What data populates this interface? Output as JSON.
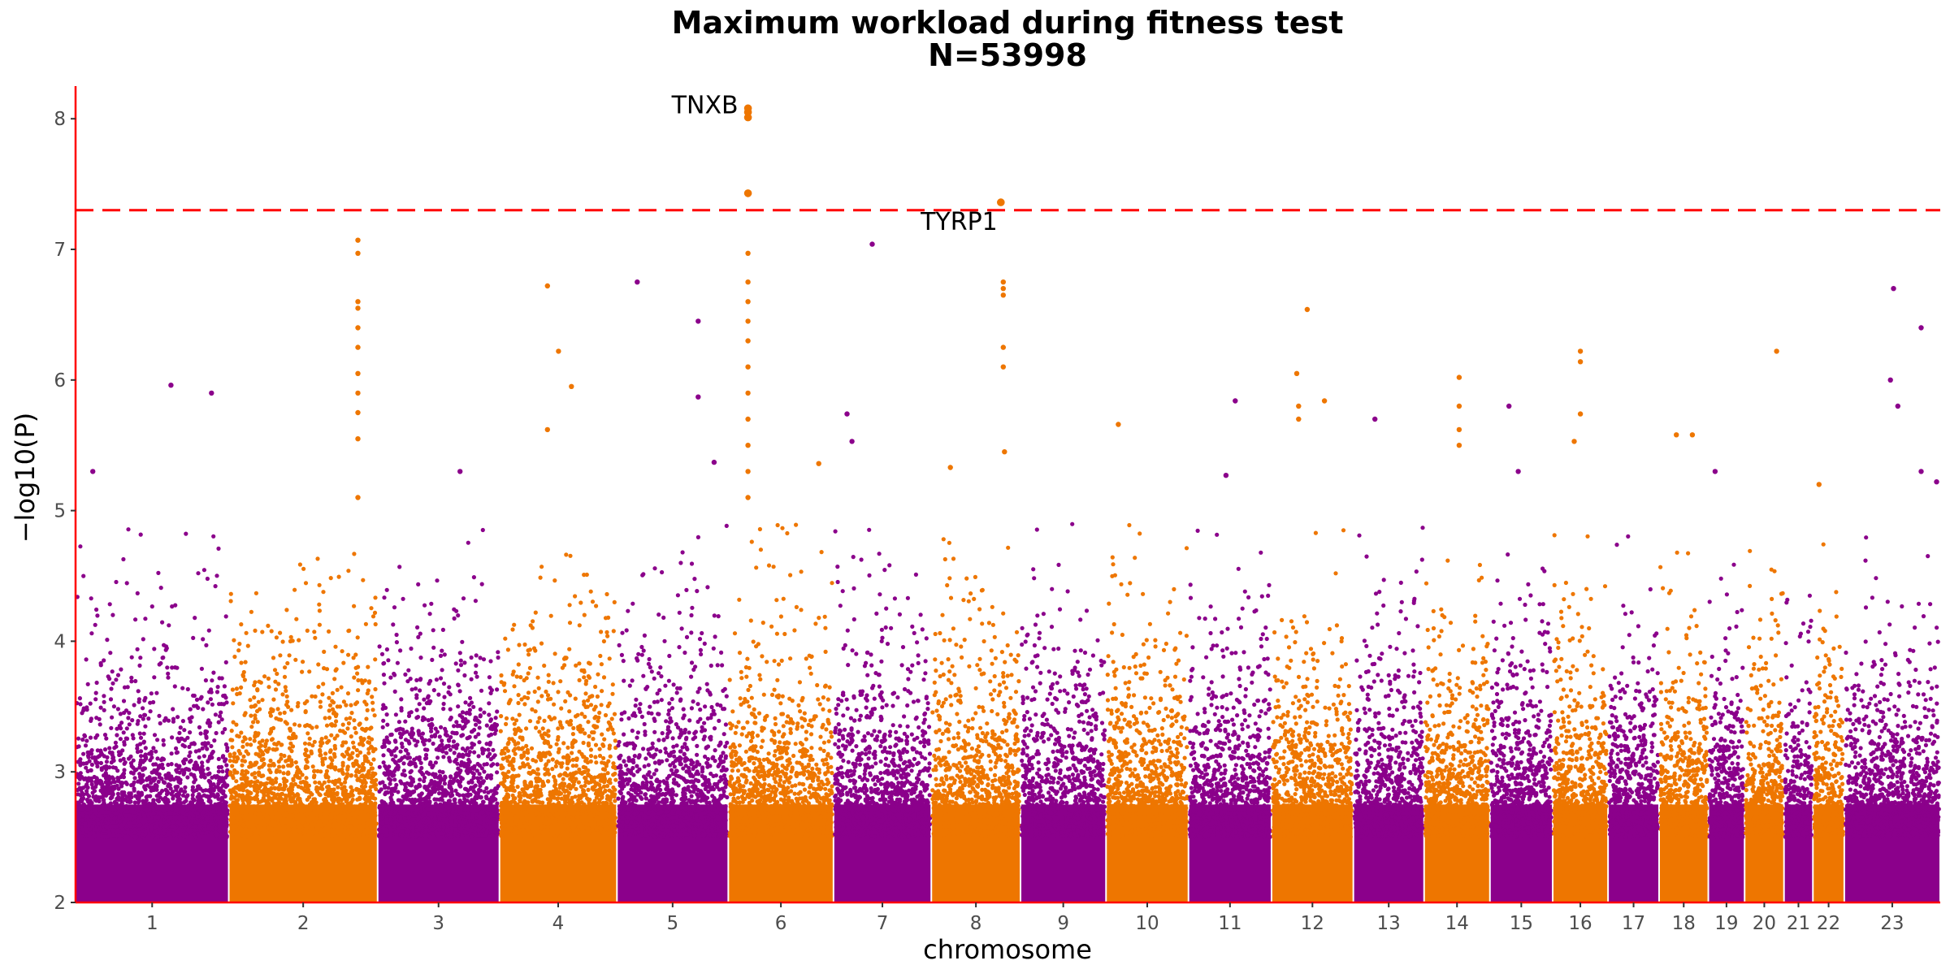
{
  "chart_data": {
    "type": "scatter",
    "subtype": "manhattan",
    "title": "Maximum workload during fitness test",
    "subtitle": "N=53998",
    "xlabel": "chromosome",
    "ylabel": "−log10(P)",
    "ylim": [
      2,
      8.25
    ],
    "yticks": [
      2,
      3,
      4,
      5,
      6,
      7,
      8
    ],
    "grid": false,
    "legend": "none",
    "colors": {
      "odd": "#8b008b",
      "even": "#ee7600",
      "axis": "#ff0000",
      "threshold": "#ff0000"
    },
    "threshold": {
      "value": 7.3,
      "style": "dashed"
    },
    "chromosomes": [
      {
        "chr": "1",
        "start": 0,
        "end": 249
      },
      {
        "chr": "2",
        "start": 249,
        "end": 491
      },
      {
        "chr": "3",
        "start": 491,
        "end": 689
      },
      {
        "chr": "4",
        "start": 689,
        "end": 880
      },
      {
        "chr": "5",
        "start": 880,
        "end": 1061
      },
      {
        "chr": "6",
        "start": 1061,
        "end": 1232
      },
      {
        "chr": "7",
        "start": 1232,
        "end": 1391
      },
      {
        "chr": "8",
        "start": 1391,
        "end": 1536
      },
      {
        "chr": "9",
        "start": 1536,
        "end": 1675
      },
      {
        "chr": "10",
        "start": 1675,
        "end": 1809
      },
      {
        "chr": "11",
        "start": 1809,
        "end": 1944
      },
      {
        "chr": "12",
        "start": 1944,
        "end": 2077
      },
      {
        "chr": "13",
        "start": 2077,
        "end": 2192
      },
      {
        "chr": "14",
        "start": 2192,
        "end": 2299
      },
      {
        "chr": "15",
        "start": 2299,
        "end": 2401
      },
      {
        "chr": "16",
        "start": 2401,
        "end": 2491
      },
      {
        "chr": "17",
        "start": 2491,
        "end": 2574
      },
      {
        "chr": "18",
        "start": 2574,
        "end": 2654
      },
      {
        "chr": "19",
        "start": 2654,
        "end": 2713
      },
      {
        "chr": "20",
        "start": 2713,
        "end": 2777
      },
      {
        "chr": "21",
        "start": 2777,
        "end": 2824
      },
      {
        "chr": "22",
        "start": 2824,
        "end": 2875
      },
      {
        "chr": "23",
        "start": 2875,
        "end": 3031
      }
    ],
    "points": [
      {
        "chr": "6",
        "pos": 1093,
        "y": 8.08
      },
      {
        "chr": "6",
        "pos": 1093,
        "y": 8.05
      },
      {
        "chr": "6",
        "pos": 1093,
        "y": 8.01
      },
      {
        "chr": "6",
        "pos": 1093,
        "y": 7.43
      },
      {
        "chr": "6",
        "pos": 1093,
        "y": 6.97
      },
      {
        "chr": "6",
        "pos": 1093,
        "y": 6.75
      },
      {
        "chr": "6",
        "pos": 1093,
        "y": 6.6
      },
      {
        "chr": "6",
        "pos": 1093,
        "y": 6.45
      },
      {
        "chr": "6",
        "pos": 1093,
        "y": 6.3
      },
      {
        "chr": "6",
        "pos": 1093,
        "y": 6.1
      },
      {
        "chr": "6",
        "pos": 1093,
        "y": 5.9
      },
      {
        "chr": "6",
        "pos": 1093,
        "y": 5.7
      },
      {
        "chr": "6",
        "pos": 1093,
        "y": 5.5
      },
      {
        "chr": "6",
        "pos": 1093,
        "y": 5.3
      },
      {
        "chr": "6",
        "pos": 1093,
        "y": 5.1
      },
      {
        "chr": "8",
        "pos": 1504,
        "y": 7.36
      },
      {
        "chr": "8",
        "pos": 1508,
        "y": 6.75
      },
      {
        "chr": "8",
        "pos": 1508,
        "y": 6.7
      },
      {
        "chr": "8",
        "pos": 1508,
        "y": 6.65
      },
      {
        "chr": "8",
        "pos": 1508,
        "y": 6.25
      },
      {
        "chr": "8",
        "pos": 1508,
        "y": 6.1
      },
      {
        "chr": "8",
        "pos": 1510,
        "y": 5.45
      },
      {
        "chr": "2",
        "pos": 459,
        "y": 7.07
      },
      {
        "chr": "2",
        "pos": 459,
        "y": 6.97
      },
      {
        "chr": "2",
        "pos": 459,
        "y": 6.6
      },
      {
        "chr": "2",
        "pos": 459,
        "y": 6.55
      },
      {
        "chr": "2",
        "pos": 459,
        "y": 6.4
      },
      {
        "chr": "2",
        "pos": 459,
        "y": 6.25
      },
      {
        "chr": "2",
        "pos": 459,
        "y": 6.05
      },
      {
        "chr": "2",
        "pos": 459,
        "y": 5.9
      },
      {
        "chr": "2",
        "pos": 459,
        "y": 5.75
      },
      {
        "chr": "2",
        "pos": 459,
        "y": 5.55
      },
      {
        "chr": "2",
        "pos": 459,
        "y": 5.1
      },
      {
        "chr": "7",
        "pos": 1295,
        "y": 7.04
      },
      {
        "chr": "23",
        "pos": 2955,
        "y": 6.7
      },
      {
        "chr": "23",
        "pos": 3000,
        "y": 6.4
      },
      {
        "chr": "23",
        "pos": 2950,
        "y": 6.0
      },
      {
        "chr": "23",
        "pos": 2962,
        "y": 5.8
      },
      {
        "chr": "5",
        "pos": 913,
        "y": 6.75
      },
      {
        "chr": "5",
        "pos": 1012,
        "y": 6.45
      },
      {
        "chr": "5",
        "pos": 1012,
        "y": 5.87
      },
      {
        "chr": "4",
        "pos": 767,
        "y": 6.72
      },
      {
        "chr": "4",
        "pos": 785,
        "y": 6.22
      },
      {
        "chr": "4",
        "pos": 806,
        "y": 5.95
      },
      {
        "chr": "4",
        "pos": 767,
        "y": 5.62
      },
      {
        "chr": "12",
        "pos": 2002,
        "y": 6.54
      },
      {
        "chr": "12",
        "pos": 1985,
        "y": 6.05
      },
      {
        "chr": "12",
        "pos": 1988,
        "y": 5.8
      },
      {
        "chr": "12",
        "pos": 1988,
        "y": 5.7
      },
      {
        "chr": "12",
        "pos": 2030,
        "y": 5.84
      },
      {
        "chr": "16",
        "pos": 2446,
        "y": 6.22
      },
      {
        "chr": "16",
        "pos": 2446,
        "y": 6.14
      },
      {
        "chr": "16",
        "pos": 2446,
        "y": 5.74
      },
      {
        "chr": "16",
        "pos": 2436,
        "y": 5.53
      },
      {
        "chr": "20",
        "pos": 2765,
        "y": 6.22
      },
      {
        "chr": "14",
        "pos": 2249,
        "y": 6.02
      },
      {
        "chr": "14",
        "pos": 2249,
        "y": 5.8
      },
      {
        "chr": "14",
        "pos": 2249,
        "y": 5.62
      },
      {
        "chr": "14",
        "pos": 2249,
        "y": 5.5
      },
      {
        "chr": "1",
        "pos": 155,
        "y": 5.96
      },
      {
        "chr": "1",
        "pos": 221,
        "y": 5.9
      },
      {
        "chr": "1",
        "pos": 28,
        "y": 5.3
      },
      {
        "chr": "11",
        "pos": 1885,
        "y": 5.84
      },
      {
        "chr": "15",
        "pos": 2330,
        "y": 5.8
      },
      {
        "chr": "13",
        "pos": 2112,
        "y": 5.7
      },
      {
        "chr": "7",
        "pos": 1254,
        "y": 5.74
      },
      {
        "chr": "7",
        "pos": 1262,
        "y": 5.53
      },
      {
        "chr": "10",
        "pos": 1695,
        "y": 5.66
      },
      {
        "chr": "18",
        "pos": 2602,
        "y": 5.58
      },
      {
        "chr": "18",
        "pos": 2628,
        "y": 5.58
      },
      {
        "chr": "5",
        "pos": 1038,
        "y": 5.37
      },
      {
        "chr": "3",
        "pos": 625,
        "y": 5.3
      },
      {
        "chr": "6",
        "pos": 1208,
        "y": 5.36
      },
      {
        "chr": "8",
        "pos": 1422,
        "y": 5.33
      },
      {
        "chr": "19",
        "pos": 2665,
        "y": 5.3
      },
      {
        "chr": "23",
        "pos": 3000,
        "y": 5.3
      },
      {
        "chr": "23",
        "pos": 3025,
        "y": 5.22
      },
      {
        "chr": "22",
        "pos": 2834,
        "y": 5.2
      },
      {
        "chr": "11",
        "pos": 1870,
        "y": 5.27
      },
      {
        "chr": "15",
        "pos": 2345,
        "y": 5.3
      }
    ],
    "annotations": [
      {
        "label": "TNXB",
        "chr": "6",
        "pos": 1093,
        "y": 8.08
      },
      {
        "label": "TYRP1",
        "chr": "8",
        "pos": 1504,
        "y": 7.36
      }
    ],
    "note_on_bulk": "Dense cloud of many thousands of variants per chromosome between y=2 and ~4.5 (alternating purple/orange by chromosome)"
  }
}
